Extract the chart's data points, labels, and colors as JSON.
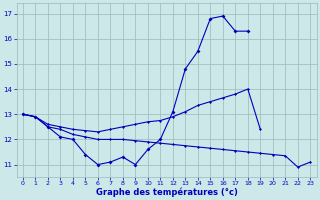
{
  "hours": [
    0,
    1,
    2,
    3,
    4,
    5,
    6,
    7,
    8,
    9,
    10,
    11,
    12,
    13,
    14,
    15,
    16,
    17,
    18,
    19,
    20,
    21,
    22,
    23
  ],
  "series1": [
    13.0,
    12.9,
    12.5,
    12.1,
    12.0,
    11.4,
    11.0,
    11.1,
    11.3,
    11.0,
    11.6,
    12.0,
    13.1,
    14.8,
    15.5,
    16.8,
    16.9,
    16.3,
    16.3,
    null,
    null,
    null,
    null,
    null
  ],
  "series2": [
    13.0,
    12.9,
    12.6,
    12.5,
    12.4,
    12.35,
    12.3,
    12.4,
    12.5,
    12.6,
    12.7,
    12.75,
    12.9,
    13.1,
    13.35,
    13.5,
    13.65,
    13.8,
    14.0,
    12.4,
    null,
    null,
    null,
    null
  ],
  "series3": [
    13.0,
    12.9,
    12.5,
    12.4,
    12.2,
    12.1,
    12.0,
    12.0,
    12.0,
    11.95,
    11.9,
    11.85,
    11.8,
    11.75,
    11.7,
    11.65,
    11.6,
    11.55,
    11.5,
    11.45,
    11.4,
    11.35,
    10.9,
    11.1
  ],
  "line_color": "#0000bb",
  "bg_color": "#cce8e8",
  "grid_color": "#99bbbb",
  "xlabel": "Graphe des températures (°c)",
  "ylim": [
    10.5,
    17.4
  ],
  "xlim": [
    -0.5,
    23.5
  ],
  "yticks": [
    11,
    12,
    13,
    14,
    15,
    16,
    17
  ],
  "xticks": [
    0,
    1,
    2,
    3,
    4,
    5,
    6,
    7,
    8,
    9,
    10,
    11,
    12,
    13,
    14,
    15,
    16,
    17,
    18,
    19,
    20,
    21,
    22,
    23
  ]
}
